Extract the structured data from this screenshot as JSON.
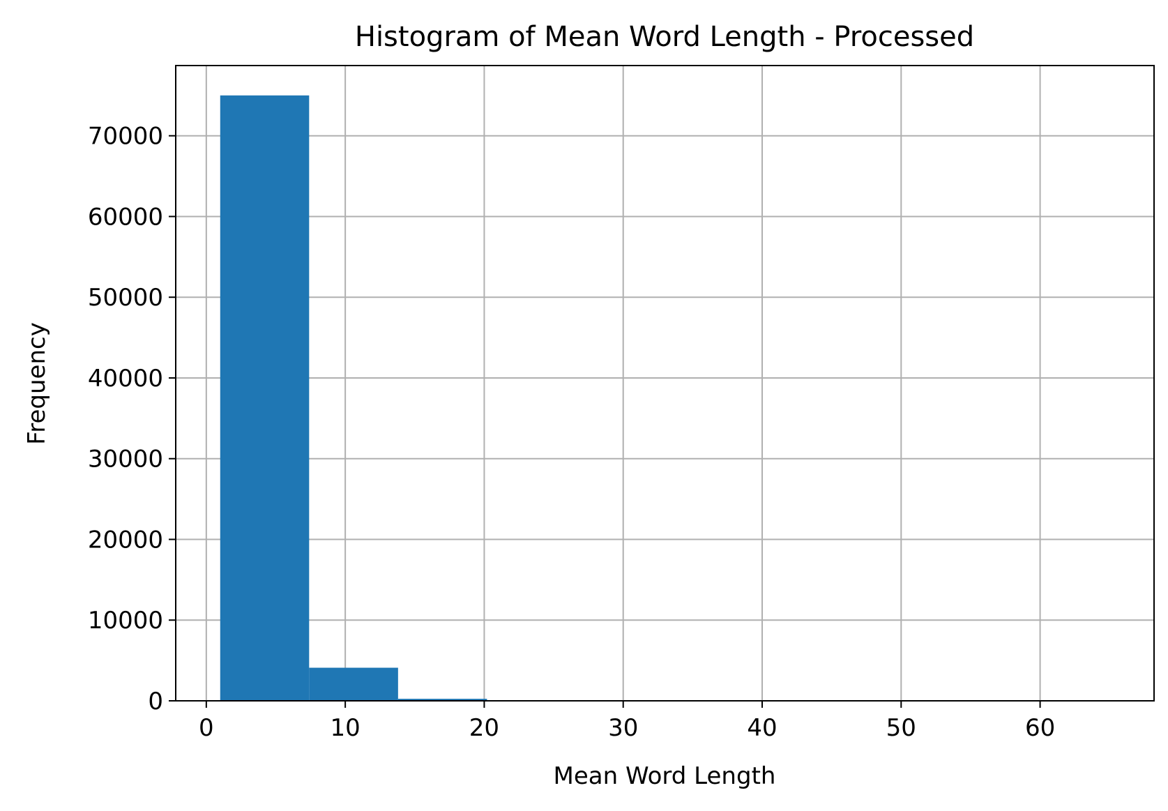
{
  "chart_data": {
    "type": "bar",
    "title": "Histogram of Mean Word Length - Processed",
    "xlabel": "Mean Word Length",
    "ylabel": "Frequency",
    "xlim": [
      -2.2,
      68.2
    ],
    "ylim": [
      0,
      78700
    ],
    "grid": true,
    "bar_color": "#1f77b4",
    "bins": [
      {
        "x0": 1.0,
        "x1": 7.4,
        "count": 75000
      },
      {
        "x0": 7.4,
        "x1": 13.8,
        "count": 4100
      },
      {
        "x0": 13.8,
        "x1": 20.2,
        "count": 250
      },
      {
        "x0": 20.2,
        "x1": 26.6,
        "count": 10
      },
      {
        "x0": 26.6,
        "x1": 33.0,
        "count": 3
      },
      {
        "x0": 33.0,
        "x1": 39.4,
        "count": 1
      },
      {
        "x0": 39.4,
        "x1": 45.8,
        "count": 1
      },
      {
        "x0": 45.8,
        "x1": 52.2,
        "count": 0
      },
      {
        "x0": 52.2,
        "x1": 58.6,
        "count": 0
      },
      {
        "x0": 58.6,
        "x1": 65.0,
        "count": 1
      }
    ],
    "x_ticks": [
      0,
      10,
      20,
      30,
      40,
      50,
      60
    ],
    "x_tick_labels": [
      "0",
      "10",
      "20",
      "30",
      "40",
      "50",
      "60"
    ],
    "y_ticks": [
      0,
      10000,
      20000,
      30000,
      40000,
      50000,
      60000,
      70000
    ],
    "y_tick_labels": [
      "0",
      "10000",
      "20000",
      "30000",
      "40000",
      "50000",
      "60000",
      "70000"
    ]
  }
}
